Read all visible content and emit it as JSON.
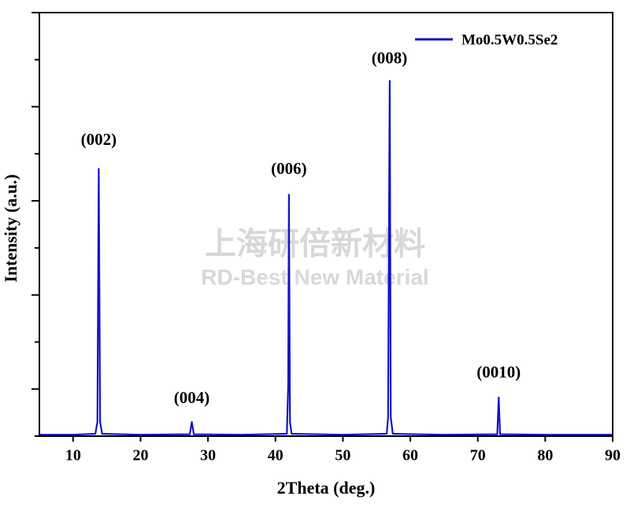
{
  "chart_data": {
    "type": "line",
    "x_label": "2Theta (deg.)",
    "y_label": "Intensity (a.u.)",
    "x": [
      5,
      10,
      13.3,
      13.6,
      13.8,
      14.0,
      14.3,
      20,
      27.3,
      27.6,
      27.9,
      35,
      41.7,
      41.9,
      42.0,
      42.15,
      42.4,
      50,
      56.5,
      56.7,
      56.85,
      56.95,
      57.1,
      57.4,
      65,
      72.9,
      73.1,
      73.3,
      80,
      90
    ],
    "series": [
      {
        "name": "Mo0.5W0.5Se2",
        "color": "#1414c8",
        "values": [
          0.03,
          0.03,
          0.05,
          0.3,
          5.68,
          0.3,
          0.05,
          0.03,
          0.04,
          0.3,
          0.04,
          0.03,
          0.05,
          1.1,
          5.13,
          0.3,
          0.05,
          0.03,
          0.05,
          0.4,
          4.93,
          7.55,
          0.4,
          0.05,
          0.03,
          0.04,
          0.82,
          0.04,
          0.03,
          0.03
        ]
      }
    ],
    "xlim": [
      5,
      90
    ],
    "xticks": [
      10,
      20,
      30,
      40,
      50,
      60,
      70,
      80,
      90
    ],
    "ylim": [
      0,
      9
    ],
    "yticks": [
      0,
      1,
      2,
      3,
      4,
      5,
      6,
      7,
      8,
      9
    ],
    "annotations": [
      {
        "text": "(002)",
        "x": 13.8,
        "y": 6.27
      },
      {
        "text": "(004)",
        "x": 27.6,
        "y": 0.78
      },
      {
        "text": "(006)",
        "x": 42.0,
        "y": 5.65
      },
      {
        "text": "(008)",
        "x": 56.9,
        "y": 8.0
      },
      {
        "text": "(0010)",
        "x": 73.1,
        "y": 1.33
      }
    ],
    "legend": "upper right",
    "watermark": {
      "line1": "上海研倍新材料",
      "line2": "RD-Best New Material"
    }
  }
}
